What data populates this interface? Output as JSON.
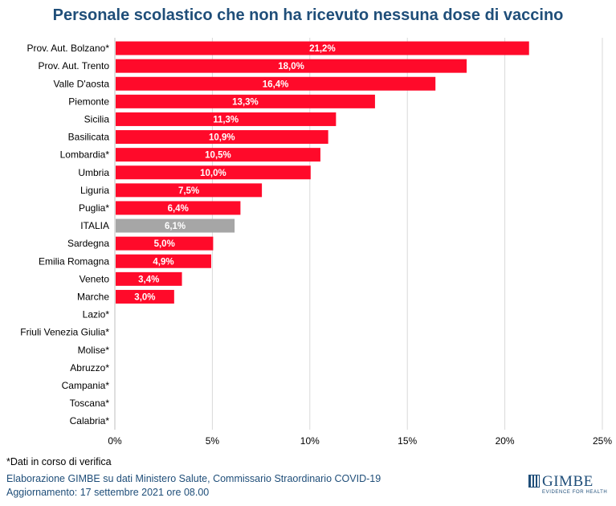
{
  "chart_data": {
    "type": "bar",
    "orientation": "horizontal",
    "title": "Personale scolastico che non ha ricevuto nessuna dose di vaccino",
    "xlabel": "",
    "ylabel": "",
    "xlim": [
      0,
      25
    ],
    "x_ticks": [
      0,
      5,
      10,
      15,
      20,
      25
    ],
    "x_tick_labels": [
      "0%",
      "5%",
      "10%",
      "15%",
      "20%",
      "25%"
    ],
    "grid": "vertical",
    "categories": [
      "Prov. Aut. Bolzano*",
      "Prov. Aut. Trento",
      "Valle D'aosta",
      "Piemonte",
      "Sicilia",
      "Basilicata",
      "Lombardia*",
      "Umbria",
      "Liguria",
      "Puglia*",
      "ITALIA",
      "Sardegna",
      "Emilia Romagna",
      "Veneto",
      "Marche",
      "Lazio*",
      "Friuli Venezia Giulia*",
      "Molise*",
      "Abruzzo*",
      "Campania*",
      "Toscana*",
      "Calabria*"
    ],
    "values": [
      21.2,
      18.0,
      16.4,
      13.3,
      11.3,
      10.9,
      10.5,
      10.0,
      7.5,
      6.4,
      6.1,
      5.0,
      4.9,
      3.4,
      3.0,
      null,
      null,
      null,
      null,
      null,
      null,
      null
    ],
    "data_labels": [
      "21,2%",
      "18,0%",
      "16,4%",
      "13,3%",
      "11,3%",
      "10,9%",
      "10,5%",
      "10,0%",
      "7,5%",
      "6,4%",
      "6,1%",
      "5,0%",
      "4,9%",
      "3,4%",
      "3,0%",
      "",
      "",
      "",
      "",
      "",
      "",
      ""
    ],
    "colors": {
      "bar": "#ff0a2a",
      "highlight": "#a6a6a6",
      "grid": "#d9d9d9"
    },
    "highlight_category": "ITALIA"
  },
  "footer": {
    "note": "*Dati in corso di verifica",
    "source": "Elaborazione GIMBE su dati Ministero Salute, Commissario Straordinario COVID-19",
    "updated": "Aggiornamento: 17 settembre 2021 ore 08.00"
  },
  "logo": {
    "name": "GIMBE",
    "tagline": "EVIDENCE FOR HEALTH"
  }
}
